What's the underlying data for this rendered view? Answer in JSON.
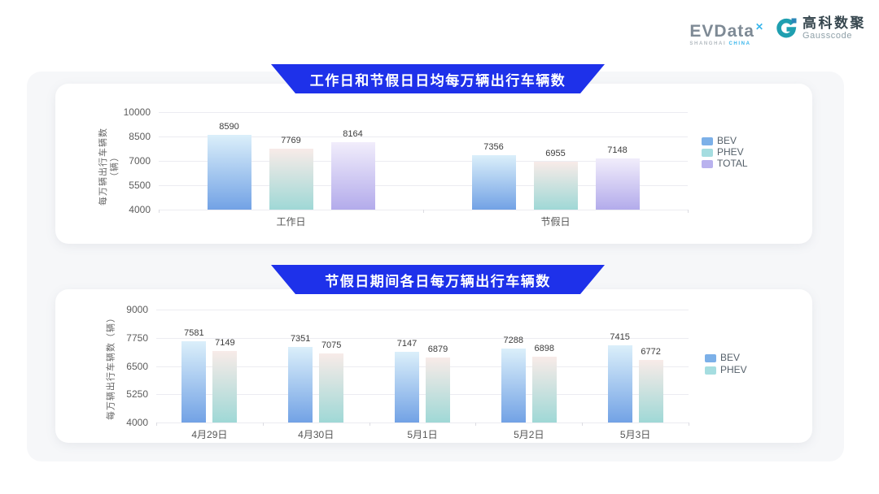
{
  "logo": {
    "evdata_text": "EVData",
    "evdata_mark": "✕",
    "evdata_sub_left": "SHANGHAI",
    "evdata_sub_right": "CHINA",
    "gausscode_cn": "高科数聚",
    "gausscode_en": "Gausscode"
  },
  "colors": {
    "banner": "#1e31ea",
    "evdata_gray": "#7e8a95",
    "evdata_accent": "#38b6ec",
    "gausscode_teal": "#1f9fb0",
    "gausscode_square": "#2a86b8",
    "card_background": "#ffffff",
    "panel_background": "#f6f7f9"
  },
  "series_styles": {
    "BEV": {
      "swatch": "#7cb0e8",
      "grad_top": "#dbeffa",
      "grad_bottom": "#72a2e5"
    },
    "PHEV": {
      "swatch": "#a5dde0",
      "grad_top": "#f8ebe8",
      "grad_bottom": "#9fd8d6"
    },
    "TOTAL": {
      "swatch": "#b9b2ee",
      "grad_top": "#f1edfb",
      "grad_bottom": "#b3abeb"
    }
  },
  "chart_data": [
    {
      "type": "bar",
      "title": "工作日和节假日日均每万辆出行车辆数",
      "categories": [
        "工作日",
        "节假日"
      ],
      "series": [
        {
          "name": "BEV",
          "values": [
            8590,
            7356
          ]
        },
        {
          "name": "PHEV",
          "values": [
            7769,
            6955
          ]
        },
        {
          "name": "TOTAL",
          "values": [
            8164,
            7148
          ]
        }
      ],
      "xlabel": "",
      "ylabel": "每万辆出行车辆数（辆）",
      "ylim": [
        4000,
        10000
      ],
      "yticks": [
        4000,
        5500,
        7000,
        8500,
        10000
      ],
      "grid": true,
      "legend_position": "right"
    },
    {
      "type": "bar",
      "title": "节假日期间各日每万辆出行车辆数",
      "categories": [
        "4月29日",
        "4月30日",
        "5月1日",
        "5月2日",
        "5月3日"
      ],
      "series": [
        {
          "name": "BEV",
          "values": [
            7581,
            7351,
            7147,
            7288,
            7415
          ]
        },
        {
          "name": "PHEV",
          "values": [
            7149,
            7075,
            6879,
            6898,
            6772
          ]
        }
      ],
      "xlabel": "",
      "ylabel": "每万辆出行车辆数（辆）",
      "ylim": [
        4000,
        9000
      ],
      "yticks": [
        4000,
        5250,
        6500,
        7750,
        9000
      ],
      "grid": true,
      "legend_position": "right"
    }
  ]
}
